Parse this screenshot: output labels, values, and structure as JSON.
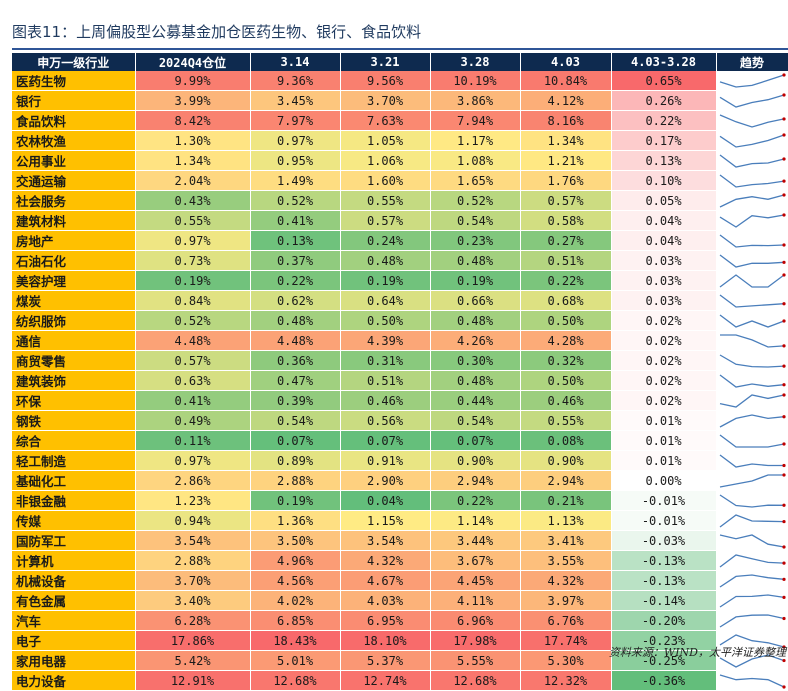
{
  "title": "图表11：上周偏股型公募基金加仓医药生物、银行、食品饮料",
  "headers": [
    "申万一级行业",
    "2024Q4仓位",
    "3.14",
    "3.21",
    "3.28",
    "4.03",
    "4.03-3.28",
    "趋势"
  ],
  "rows": [
    {
      "industry": "医药生物",
      "q4": "9.99%",
      "d314": "9.36%",
      "d321": "9.56%",
      "d328": "10.19%",
      "d403": "10.84%",
      "chg": "0.65%"
    },
    {
      "industry": "银行",
      "q4": "3.99%",
      "d314": "3.45%",
      "d321": "3.70%",
      "d328": "3.86%",
      "d403": "4.12%",
      "chg": "0.26%"
    },
    {
      "industry": "食品饮料",
      "q4": "8.42%",
      "d314": "7.97%",
      "d321": "7.63%",
      "d328": "7.94%",
      "d403": "8.16%",
      "chg": "0.22%"
    },
    {
      "industry": "农林牧渔",
      "q4": "1.30%",
      "d314": "0.97%",
      "d321": "1.05%",
      "d328": "1.17%",
      "d403": "1.34%",
      "chg": "0.17%"
    },
    {
      "industry": "公用事业",
      "q4": "1.34%",
      "d314": "0.95%",
      "d321": "1.06%",
      "d328": "1.08%",
      "d403": "1.21%",
      "chg": "0.13%"
    },
    {
      "industry": "交通运输",
      "q4": "2.04%",
      "d314": "1.49%",
      "d321": "1.60%",
      "d328": "1.65%",
      "d403": "1.76%",
      "chg": "0.10%"
    },
    {
      "industry": "社会服务",
      "q4": "0.43%",
      "d314": "0.52%",
      "d321": "0.55%",
      "d328": "0.52%",
      "d403": "0.57%",
      "chg": "0.05%"
    },
    {
      "industry": "建筑材料",
      "q4": "0.55%",
      "d314": "0.41%",
      "d321": "0.57%",
      "d328": "0.54%",
      "d403": "0.58%",
      "chg": "0.04%"
    },
    {
      "industry": "房地产",
      "q4": "0.97%",
      "d314": "0.13%",
      "d321": "0.24%",
      "d328": "0.23%",
      "d403": "0.27%",
      "chg": "0.04%"
    },
    {
      "industry": "石油石化",
      "q4": "0.73%",
      "d314": "0.37%",
      "d321": "0.48%",
      "d328": "0.48%",
      "d403": "0.51%",
      "chg": "0.03%"
    },
    {
      "industry": "美容护理",
      "q4": "0.19%",
      "d314": "0.22%",
      "d321": "0.19%",
      "d328": "0.19%",
      "d403": "0.22%",
      "chg": "0.03%"
    },
    {
      "industry": "煤炭",
      "q4": "0.84%",
      "d314": "0.62%",
      "d321": "0.64%",
      "d328": "0.66%",
      "d403": "0.68%",
      "chg": "0.03%"
    },
    {
      "industry": "纺织服饰",
      "q4": "0.52%",
      "d314": "0.48%",
      "d321": "0.50%",
      "d328": "0.48%",
      "d403": "0.50%",
      "chg": "0.02%"
    },
    {
      "industry": "通信",
      "q4": "4.48%",
      "d314": "4.48%",
      "d321": "4.39%",
      "d328": "4.26%",
      "d403": "4.28%",
      "chg": "0.02%"
    },
    {
      "industry": "商贸零售",
      "q4": "0.57%",
      "d314": "0.36%",
      "d321": "0.31%",
      "d328": "0.30%",
      "d403": "0.32%",
      "chg": "0.02%"
    },
    {
      "industry": "建筑装饰",
      "q4": "0.63%",
      "d314": "0.47%",
      "d321": "0.51%",
      "d328": "0.48%",
      "d403": "0.50%",
      "chg": "0.02%"
    },
    {
      "industry": "环保",
      "q4": "0.41%",
      "d314": "0.39%",
      "d321": "0.46%",
      "d328": "0.44%",
      "d403": "0.46%",
      "chg": "0.02%"
    },
    {
      "industry": "钢铁",
      "q4": "0.49%",
      "d314": "0.54%",
      "d321": "0.56%",
      "d328": "0.54%",
      "d403": "0.55%",
      "chg": "0.01%"
    },
    {
      "industry": "综合",
      "q4": "0.11%",
      "d314": "0.07%",
      "d321": "0.07%",
      "d328": "0.07%",
      "d403": "0.08%",
      "chg": "0.01%"
    },
    {
      "industry": "轻工制造",
      "q4": "0.97%",
      "d314": "0.89%",
      "d321": "0.91%",
      "d328": "0.90%",
      "d403": "0.90%",
      "chg": "0.01%"
    },
    {
      "industry": "基础化工",
      "q4": "2.86%",
      "d314": "2.88%",
      "d321": "2.90%",
      "d328": "2.94%",
      "d403": "2.94%",
      "chg": "0.00%"
    },
    {
      "industry": "非银金融",
      "q4": "1.23%",
      "d314": "0.19%",
      "d321": "0.04%",
      "d328": "0.22%",
      "d403": "0.21%",
      "chg": "-0.01%"
    },
    {
      "industry": "传媒",
      "q4": "0.94%",
      "d314": "1.36%",
      "d321": "1.15%",
      "d328": "1.14%",
      "d403": "1.13%",
      "chg": "-0.01%"
    },
    {
      "industry": "国防军工",
      "q4": "3.54%",
      "d314": "3.50%",
      "d321": "3.54%",
      "d328": "3.44%",
      "d403": "3.41%",
      "chg": "-0.03%"
    },
    {
      "industry": "计算机",
      "q4": "2.88%",
      "d314": "4.96%",
      "d321": "4.32%",
      "d328": "3.67%",
      "d403": "3.55%",
      "chg": "-0.13%"
    },
    {
      "industry": "机械设备",
      "q4": "3.70%",
      "d314": "4.56%",
      "d321": "4.67%",
      "d328": "4.45%",
      "d403": "4.32%",
      "chg": "-0.13%"
    },
    {
      "industry": "有色金属",
      "q4": "3.40%",
      "d314": "4.02%",
      "d321": "4.03%",
      "d328": "4.11%",
      "d403": "3.97%",
      "chg": "-0.14%"
    },
    {
      "industry": "汽车",
      "q4": "6.28%",
      "d314": "6.85%",
      "d321": "6.95%",
      "d328": "6.96%",
      "d403": "6.76%",
      "chg": "-0.20%"
    },
    {
      "industry": "电子",
      "q4": "17.86%",
      "d314": "18.43%",
      "d321": "18.10%",
      "d328": "17.98%",
      "d403": "17.74%",
      "chg": "-0.23%"
    },
    {
      "industry": "家用电器",
      "q4": "5.42%",
      "d314": "5.01%",
      "d321": "5.37%",
      "d328": "5.55%",
      "d403": "5.30%",
      "chg": "-0.25%"
    },
    {
      "industry": "电力设备",
      "q4": "12.91%",
      "d314": "12.68%",
      "d321": "12.74%",
      "d328": "12.68%",
      "d403": "12.32%",
      "chg": "-0.36%"
    }
  ],
  "source": "资料来源：WIND，太平洋证券整理",
  "colors": {
    "header_bg": "#0E2A4F",
    "industry_bg": "#FFC000",
    "scale_low": "#63BE7B",
    "scale_mid": "#FFEB84",
    "scale_high": "#F8696B",
    "sparkline": "#4A7EBB",
    "sparkline_end": "#C00000"
  }
}
